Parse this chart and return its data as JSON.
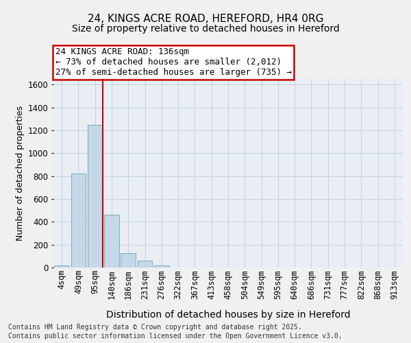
{
  "title1": "24, KINGS ACRE ROAD, HEREFORD, HR4 0RG",
  "title2": "Size of property relative to detached houses in Hereford",
  "xlabel": "Distribution of detached houses by size in Hereford",
  "ylabel": "Number of detached properties",
  "annotation_line1": "24 KINGS ACRE ROAD: 136sqm",
  "annotation_line2": "← 73% of detached houses are smaller (2,012)",
  "annotation_line3": "27% of semi-detached houses are larger (735) →",
  "footer1": "Contains HM Land Registry data © Crown copyright and database right 2025.",
  "footer2": "Contains public sector information licensed under the Open Government Licence v3.0.",
  "bar_color": "#c5d8e8",
  "bar_edge_color": "#7aaac4",
  "vline_color": "#cc0000",
  "vline_x_index": 2,
  "annotation_box_color": "#cc0000",
  "categories": [
    "4sqm",
    "49sqm",
    "95sqm",
    "140sqm",
    "186sqm",
    "231sqm",
    "276sqm",
    "322sqm",
    "367sqm",
    "413sqm",
    "458sqm",
    "504sqm",
    "549sqm",
    "595sqm",
    "640sqm",
    "686sqm",
    "731sqm",
    "777sqm",
    "822sqm",
    "868sqm",
    "913sqm"
  ],
  "values": [
    20,
    820,
    1250,
    460,
    125,
    63,
    20,
    0,
    0,
    0,
    0,
    0,
    0,
    0,
    0,
    0,
    0,
    0,
    0,
    0,
    0
  ],
  "ylim": [
    0,
    1650
  ],
  "yticks": [
    0,
    200,
    400,
    600,
    800,
    1000,
    1200,
    1400,
    1600
  ],
  "background_color": "#f0f0f0",
  "plot_bg_color": "#e8eef4",
  "grid_color": "#c0ccd8",
  "title_fontsize": 11,
  "subtitle_fontsize": 10,
  "xlabel_fontsize": 10,
  "ylabel_fontsize": 9,
  "tick_fontsize": 8.5,
  "annotation_fontsize": 9,
  "footer_fontsize": 7
}
